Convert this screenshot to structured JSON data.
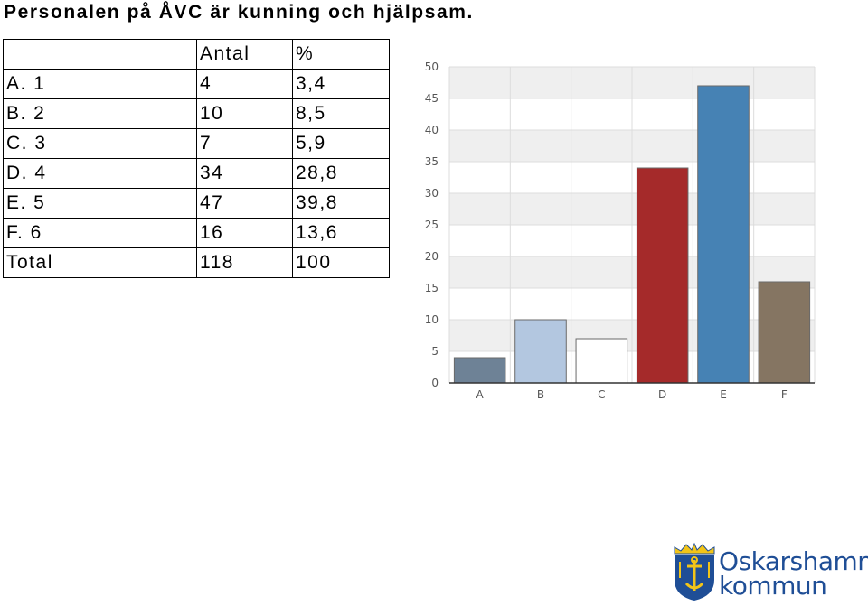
{
  "title": "Personalen på ÅVC är kunning och hjälpsam.",
  "table": {
    "headers": [
      "",
      "Antal",
      "%"
    ],
    "rows": [
      [
        "A. 1",
        "4",
        "3,4"
      ],
      [
        "B. 2",
        "10",
        "8,5"
      ],
      [
        "C. 3",
        "7",
        "5,9"
      ],
      [
        "D. 4",
        "34",
        "28,8"
      ],
      [
        "E. 5",
        "47",
        "39,8"
      ],
      [
        "F. 6",
        "16",
        "13,6"
      ],
      [
        "Total",
        "118",
        "100"
      ]
    ]
  },
  "chart_data": {
    "type": "bar",
    "categories": [
      "A",
      "B",
      "C",
      "D",
      "E",
      "F"
    ],
    "values": [
      4,
      10,
      7,
      34,
      47,
      16
    ],
    "colors": [
      "#6e8296",
      "#b3c7e0",
      "#ffffff",
      "#a52a2a",
      "#4682b4",
      "#857562"
    ],
    "ylim": [
      0,
      50
    ],
    "yticks": [
      0,
      5,
      10,
      15,
      20,
      25,
      30,
      35,
      40,
      45,
      50
    ],
    "grid": true,
    "title": "",
    "xlabel": "",
    "ylabel": ""
  },
  "logo": {
    "line1": "Oskarshamns",
    "line2": "kommun",
    "color": "#1f4e96",
    "accent": "#f2c418"
  }
}
